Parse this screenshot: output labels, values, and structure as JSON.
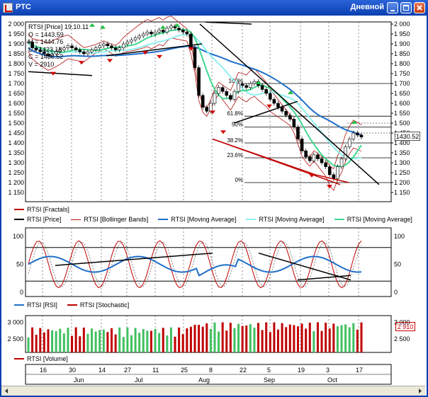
{
  "window": {
    "title": "РТС",
    "period": "Дневной"
  },
  "colors": {
    "fractals": "#c00000",
    "price": "#000000",
    "bollinger": "#b01010",
    "ma_blue": "#1f6fc8",
    "ma_cyan": "#8ff0f0",
    "ma_green": "#40d890",
    "rsi": "#1f6fc8",
    "stochastic": "#c00000",
    "vol_up": "#40c060",
    "vol_down": "#c00000",
    "title_bar": "#0a3fb0"
  },
  "info": {
    "header": "RTSI [Price] 19.10.11",
    "o": "O = 1443.59",
    "h": "H = 1444.76",
    "l": "L = 1423.18",
    "c": "C = 1430.52",
    "v": "V = 2910"
  },
  "price_pane": {
    "y_ticks": [
      "2 000",
      "1 950",
      "1 900",
      "1 850",
      "1 800",
      "1 750",
      "1 700",
      "1 650",
      "1 600",
      "1 550",
      "1 500",
      "1 450",
      "1 400",
      "1 350",
      "1 300",
      "1 250",
      "1 200",
      "1 150"
    ],
    "current_price": "1430.52",
    "fib_labels": [
      "100%",
      "61.8%",
      "50%",
      "38.2%",
      "23.6%",
      "0%"
    ],
    "legend": [
      "RTSI [Fractals]",
      "RTSI [Price]",
      "RTSI [Bollinger Bands]",
      "RTSI [Moving Average]",
      "RTSI [Moving Average]",
      "RTSI [Moving Average]"
    ]
  },
  "osc_pane": {
    "y_ticks": [
      "100",
      "50",
      "0"
    ],
    "legend": [
      "RTSI [RSI]",
      "RTSI [Stochastic]"
    ]
  },
  "vol_pane": {
    "y_ticks": [
      "3 000",
      "2 500"
    ],
    "current_volume": "2 910",
    "legend": [
      "RTSI [Volume]"
    ]
  },
  "x_axis": {
    "days": [
      "16",
      "30",
      "14",
      "27",
      "11",
      "25",
      "8",
      "22",
      "5",
      "19",
      "3",
      "17"
    ],
    "months": [
      "Jun",
      "Jul",
      "Aug",
      "Sep",
      "Oct"
    ]
  }
}
